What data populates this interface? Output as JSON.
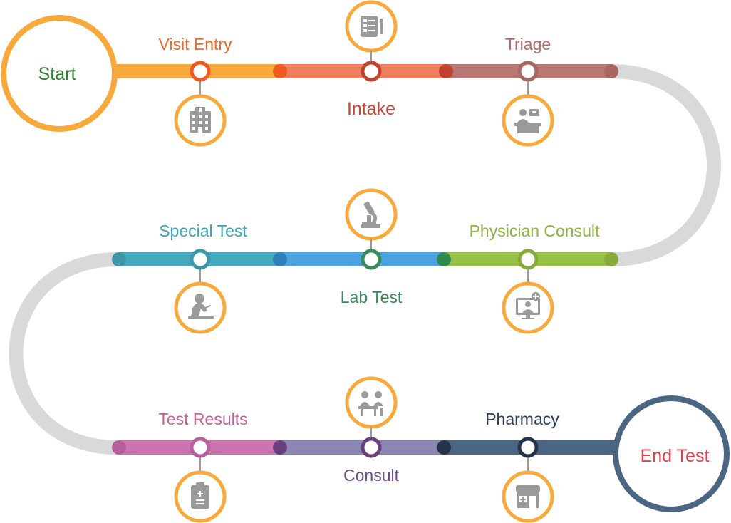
{
  "diagram": {
    "start": {
      "label": "Start",
      "color": "#2e7d32",
      "ring_color": "#f7a93b"
    },
    "end": {
      "label": "End Test",
      "color": "#e0404a",
      "ring_color": "#4b6682"
    },
    "track_color": "#d9d9d9",
    "icon_ring_color": "#f7a93b",
    "icon_fill_color": "#9a9a9a",
    "steps": [
      {
        "id": "visit-entry",
        "label": "Visit Entry",
        "label_color": "#ee6a2e",
        "line_color": "#f7a93b",
        "icon": "hospital-building-icon"
      },
      {
        "id": "intake",
        "label": "Intake",
        "label_color": "#bf4a3a",
        "line_color": "#ef7f5f",
        "icon": "clipboard-checklist-icon"
      },
      {
        "id": "triage",
        "label": "Triage",
        "label_color": "#b36a66",
        "line_color": "#b87874",
        "icon": "reception-desk-icon"
      },
      {
        "id": "physician-consult",
        "label": "Physician Consult",
        "label_color": "#8bb33f",
        "line_color": "#98c148",
        "icon": "telemedicine-monitor-icon"
      },
      {
        "id": "lab-test",
        "label": "Lab Test",
        "label_color": "#3a8a5e",
        "line_color": "#4aa3de",
        "icon": "microscope-icon"
      },
      {
        "id": "special-test",
        "label": "Special Test",
        "label_color": "#3ea4b5",
        "line_color": "#45a9bd",
        "icon": "lab-scientist-icon"
      },
      {
        "id": "test-results",
        "label": "Test Results",
        "label_color": "#c2649a",
        "line_color": "#cc74b0",
        "icon": "clipboard-results-icon"
      },
      {
        "id": "consult",
        "label": "Consult",
        "label_color": "#6e4a8c",
        "line_color": "#8c86b4",
        "icon": "doctor-patient-desk-icon"
      },
      {
        "id": "pharmacy",
        "label": "Pharmacy",
        "label_color": "#2e3e55",
        "line_color": "#4b6682",
        "icon": "pharmacy-store-icon"
      }
    ]
  }
}
